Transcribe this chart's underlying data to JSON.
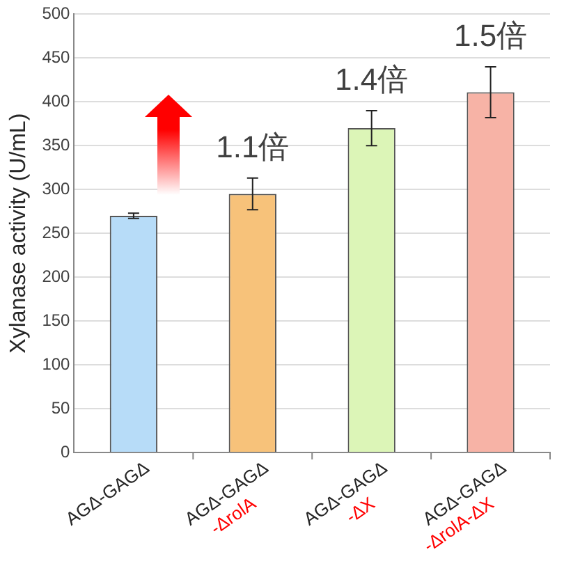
{
  "chart_data": {
    "type": "bar",
    "ylabel": "Xylanase activity (U/mL)",
    "categories": [
      "AGΔ-GAGΔ",
      "AGΔ-GAGΔ\n-ΔrolA",
      "AGΔ-GAGΔ\n-ΔX",
      "AGΔ-GAGΔ\n-ΔrolA-ΔX"
    ],
    "values": [
      270,
      295,
      370,
      411
    ],
    "errors": [
      3,
      18,
      20,
      29
    ],
    "colors": [
      "#b7dcf8",
      "#f7c27a",
      "#dcf5b7",
      "#f7b3a6"
    ],
    "ylim": [
      0,
      500
    ],
    "yticks": [
      0,
      50,
      100,
      150,
      200,
      250,
      300,
      350,
      400,
      450,
      500
    ],
    "grid": "y",
    "legend": false,
    "annotations": [
      "1.1倍",
      "1.4倍",
      "1.5倍"
    ]
  }
}
